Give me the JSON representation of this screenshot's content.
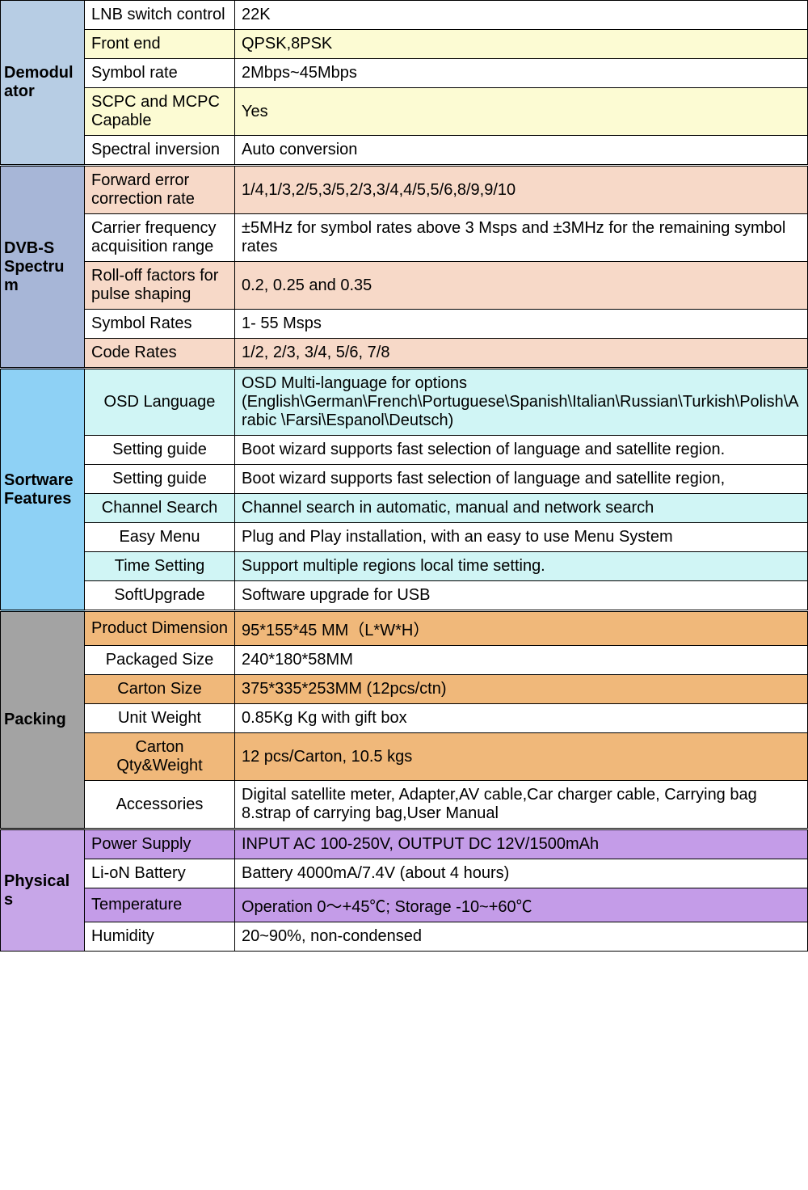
{
  "colors": {
    "white": "#ffffff",
    "demod_header": "#b7cde4",
    "demod_row": "#fcfbd3",
    "dvbs_header": "#a7b6d7",
    "dvbs_row": "#f7d9c8",
    "software_header": "#8ed1f5",
    "software_row": "#d0f5f5",
    "packing_header": "#a3a3a3",
    "packing_row": "#f0b87a",
    "physicals_header": "#c7a6e8",
    "physicals_row": "#c49ce8"
  },
  "sections": {
    "demodulator": {
      "title": "Demodulator",
      "rows": [
        {
          "label": "LNB switch control",
          "value": "22K",
          "hl": false
        },
        {
          "label": "Front end",
          "value": "QPSK,8PSK",
          "hl": true
        },
        {
          "label": "Symbol rate",
          "value": "2Mbps~45Mbps",
          "hl": false
        },
        {
          "label": "SCPC and MCPC Capable",
          "value": "Yes",
          "hl": true
        },
        {
          "label": "  Spectral inversion",
          "value": "Auto conversion",
          "hl": false
        }
      ]
    },
    "dvbs": {
      "title": "DVB-S Spectrum",
      "rows": [
        {
          "label": "Forward error correction rate",
          "value": "1/4,1/3,2/5,3/5,2/3,3/4,4/5,5/6,8/9,9/10",
          "hl": true
        },
        {
          "label": "Carrier frequency acquisition range",
          "value": " ±5MHz for symbol rates above 3 Msps and ±3MHz for the remaining symbol rates",
          "hl": false
        },
        {
          "label": "Roll-off factors for pulse shaping",
          "value": "0.2, 0.25 and 0.35",
          "hl": true
        },
        {
          "label": "Symbol Rates",
          "value": "1- 55 Msps",
          "hl": false
        },
        {
          "label": "Code Rates",
          "value": "1/2, 2/3, 3/4, 5/6, 7/8",
          "hl": true
        }
      ]
    },
    "software": {
      "title": "Sortware Features",
      "rows": [
        {
          "label": "OSD Language",
          "value": "OSD  Multi-language for options (English\\German\\French\\Portuguese\\Spanish\\Italian\\Russian\\Turkish\\Polish\\Arabic \\Farsi\\Espanol\\Deutsch)",
          "hl": true
        },
        {
          "label": "Setting guide",
          "value": "Boot wizard supports fast selection of language and satellite region.",
          "hl": false
        },
        {
          "label": "Setting guide",
          "value": "Boot wizard supports fast selection of language and satellite region,",
          "hl": false
        },
        {
          "label": "Channel Search",
          "value": "Channel search in automatic, manual and network search",
          "hl": true
        },
        {
          "label": "Easy Menu",
          "value": "Plug and Play installation, with an easy to use Menu System",
          "hl": false
        },
        {
          "label": "Time Setting",
          "value": "Support multiple regions local time setting.",
          "hl": true
        },
        {
          "label": "SoftUpgrade",
          "value": "Software upgrade for USB",
          "hl": false
        }
      ]
    },
    "packing": {
      "title": "Packing",
      "rows": [
        {
          "label": "Product Dimension",
          "value": "95*155*45 MM（L*W*H）",
          "hl": true
        },
        {
          "label": "Packaged Size",
          "value": "240*180*58MM",
          "hl": false
        },
        {
          "label": "Carton Size",
          "value": "375*335*253MM  (12pcs/ctn)",
          "hl": true
        },
        {
          "label": "Unit Weight",
          "value": "0.85Kg Kg with gift box",
          "hl": false
        },
        {
          "label": "Carton Qty&Weight",
          "value": "12 pcs/Carton, 10.5 kgs",
          "hl": true
        },
        {
          "label": "Accessories",
          "value": "Digital satellite meter, Adapter,AV  cable,Car charger cable, Carrying bag 8.strap of carrying bag,User Manual",
          "hl": false
        }
      ]
    },
    "physicals": {
      "title": "Physicals",
      "rows": [
        {
          "label": "Power Supply",
          "value": "INPUT AC 100-250V, OUTPUT DC 12V/1500mAh",
          "hl": true
        },
        {
          "label": "Li-oN Battery",
          "value": "Battery 4000mA/7.4V (about 4 hours)",
          "hl": false
        },
        {
          "label": "Temperature",
          "value": "Operation 0～+45℃; Storage -10~+60℃",
          "hl": true
        },
        {
          "label": "Humidity",
          "value": "20~90%, non-condensed",
          "hl": false
        }
      ]
    }
  }
}
